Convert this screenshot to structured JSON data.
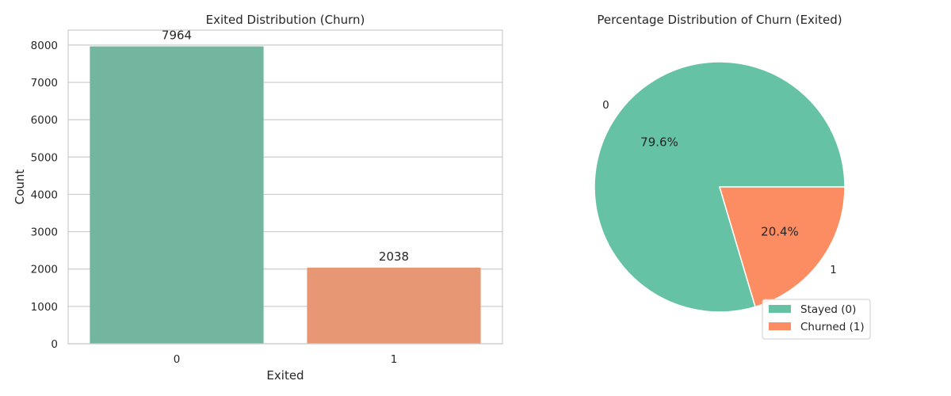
{
  "chart_data": [
    {
      "type": "bar",
      "title": "Exited Distribution (Churn)",
      "xlabel": "Exited",
      "ylabel": "Count",
      "categories": [
        "0",
        "1"
      ],
      "values": [
        7964,
        2038
      ],
      "value_labels": [
        "7964",
        "2038"
      ],
      "colors": [
        "#72b6a0",
        "#e89774"
      ],
      "ylim": [
        0,
        8400
      ],
      "yticks": [
        0,
        1000,
        2000,
        3000,
        4000,
        5000,
        6000,
        7000,
        8000
      ],
      "ytick_labels": [
        "0",
        "1000",
        "2000",
        "3000",
        "4000",
        "5000",
        "6000",
        "7000",
        "8000"
      ],
      "grid": true,
      "grid_color": "#cccccc"
    },
    {
      "type": "pie",
      "title": "Percentage Distribution of Churn (Exited)",
      "labels": [
        "0",
        "1"
      ],
      "values": [
        79.6,
        20.4
      ],
      "pct_labels": [
        "79.6%",
        "20.4%"
      ],
      "colors": [
        "#66c2a5",
        "#fc8d62"
      ],
      "legend": {
        "placement": "lower-right",
        "entries": [
          "Stayed (0)",
          "Churned (1)"
        ]
      }
    }
  ]
}
